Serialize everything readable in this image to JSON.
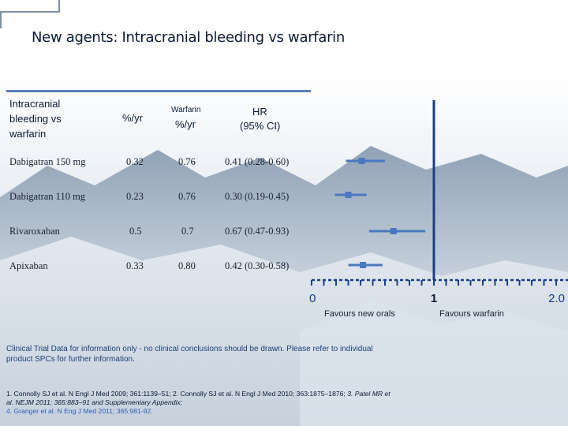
{
  "slide_title": "New agents: Intracranial bleeding vs warfarin",
  "table": {
    "headers": {
      "outcome": "Intracranial bleeding vs warfarin",
      "new_agent_rate": "%/yr",
      "warfarin_small": "Warfarin",
      "warfarin_rate": "%/yr",
      "hr_line1": "HR",
      "hr_line2": "(95% CI)"
    },
    "rows": [
      {
        "drug": "Dabigatran 150 mg",
        "rate": "0.32",
        "warfarin": "0.76",
        "hr": "0.41 (0.28-0.60)"
      },
      {
        "drug": "Dabigatran 110 mg",
        "rate": "0.23",
        "warfarin": "0.76",
        "hr": "0.30 (0.19-0.45)"
      },
      {
        "drug": "Rivaroxaban",
        "rate": "0.5",
        "warfarin": "0.7",
        "hr": "0.67 (0.47-0.93)"
      },
      {
        "drug": "Apixaban",
        "rate": "0.33",
        "warfarin": "0.80",
        "hr": "0.42 (0.30-0.58)"
      }
    ]
  },
  "chart_data": {
    "type": "scatter",
    "subtype": "forest-plot",
    "x_axis": {
      "ticks": [
        "0",
        "1",
        "2.0"
      ],
      "xlim": [
        0,
        2.0
      ]
    },
    "series": [
      {
        "values": [
          {
            "label": "Dabigatran 150 mg",
            "hr": 0.41,
            "ci_low": 0.28,
            "ci_high": 0.6
          },
          {
            "label": "Dabigatran 110 mg",
            "hr": 0.3,
            "ci_low": 0.19,
            "ci_high": 0.45
          },
          {
            "label": "Rivaroxaban",
            "hr": 0.67,
            "ci_low": 0.47,
            "ci_high": 0.93
          },
          {
            "label": "Apixaban",
            "hr": 0.42,
            "ci_low": 0.3,
            "ci_high": 0.58
          }
        ]
      }
    ],
    "reference_line": 1,
    "favours_left": "Favours new orals",
    "favours_right": "Favours warfarin",
    "marker_color": "#4a78c0"
  },
  "disclaimer": "Clinical Trial Data for information only - no clinical conclusions should be drawn. Please refer to individual product SPCs for further information.",
  "references": {
    "ref1": "1. Connolly SJ et al. N Engl J Med 2009; 361:1139–51; ",
    "ref2": "2. Connolly SJ et al. N Engl J Med 2010; 363:1875–1876; ",
    "ref3": "3. Patel MR et al. NEJM 2011; 365:883–91 and Supplementary Appendix; ",
    "ref4": "4. Granger et al. N Eng J Med 2011; 365:981-92."
  }
}
